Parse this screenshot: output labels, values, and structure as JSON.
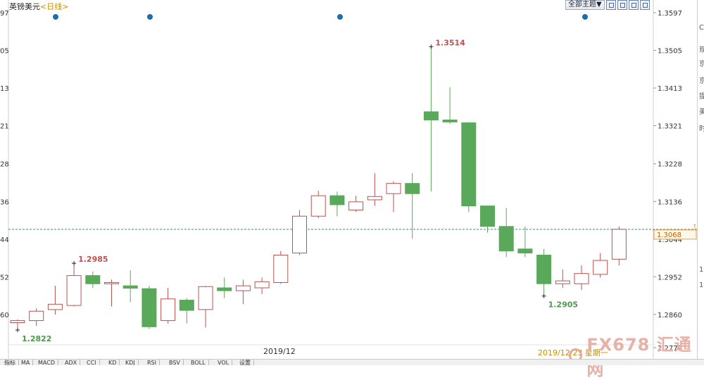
{
  "header": {
    "instrument": "英镑美元",
    "period": "<日线>",
    "toolbar_theme_label": "全部主题▼"
  },
  "left_axis_fragments": [
    "97",
    "05",
    "13",
    "21",
    "28",
    "36",
    "44",
    "52",
    "60"
  ],
  "right_strip_chars": [
    "C",
    "现",
    "京",
    "京",
    "提",
    "美",
    "时",
    "1",
    "1"
  ],
  "indicator_tabs": [
    "指标",
    "MA",
    "MACD",
    "ADX",
    "CCI",
    "KD",
    "KDJ",
    "RSI",
    "BSV",
    "BOLL",
    "VOL",
    "设置"
  ],
  "bottom_axis_label": "2019/12",
  "cursor_date_label": "2019/12/23 星期一",
  "watermark_text": "FX678 汇通网",
  "colors": {
    "up_outline": "#c0504d",
    "down_fill": "#5aa85a",
    "current_price_line": "#2a8fbf",
    "event_dot": "#1b6fa8",
    "axis_text": "#333333"
  },
  "chart_data": {
    "type": "candlestick",
    "ylim": [
      1.2779,
      1.3597
    ],
    "y_ticks": [
      1.3597,
      1.3505,
      1.3413,
      1.3321,
      1.3228,
      1.3136,
      1.3044,
      1.2952,
      1.286,
      1.2779
    ],
    "x_label": "2019/12",
    "current_price": 1.3068,
    "current_price_label": "1.3068",
    "event_marker_count": 4,
    "annotations": [
      {
        "text": "1.2822",
        "value": 1.2822,
        "kind": "low",
        "at_candle": 0
      },
      {
        "text": "1.2985",
        "value": 1.2985,
        "kind": "high",
        "at_candle": 3
      },
      {
        "text": "1.3514",
        "value": 1.3514,
        "kind": "high",
        "at_candle": 22
      },
      {
        "text": "1.2905",
        "value": 1.2905,
        "kind": "low",
        "at_candle": 28
      }
    ],
    "candles": [
      {
        "o": 1.284,
        "h": 1.2848,
        "l": 1.2822,
        "c": 1.2845
      },
      {
        "o": 1.2845,
        "h": 1.2875,
        "l": 1.2832,
        "c": 1.2868
      },
      {
        "o": 1.2872,
        "h": 1.293,
        "l": 1.286,
        "c": 1.2885
      },
      {
        "o": 1.2882,
        "h": 1.2985,
        "l": 1.288,
        "c": 1.2955
      },
      {
        "o": 1.2955,
        "h": 1.2965,
        "l": 1.2925,
        "c": 1.2935
      },
      {
        "o": 1.2935,
        "h": 1.2945,
        "l": 1.288,
        "c": 1.2938
      },
      {
        "o": 1.293,
        "h": 1.2968,
        "l": 1.289,
        "c": 1.2924
      },
      {
        "o": 1.2923,
        "h": 1.293,
        "l": 1.2824,
        "c": 1.283
      },
      {
        "o": 1.2845,
        "h": 1.2925,
        "l": 1.2838,
        "c": 1.2898
      },
      {
        "o": 1.2895,
        "h": 1.29,
        "l": 1.2838,
        "c": 1.287
      },
      {
        "o": 1.2872,
        "h": 1.293,
        "l": 1.2828,
        "c": 1.2928
      },
      {
        "o": 1.2925,
        "h": 1.295,
        "l": 1.29,
        "c": 1.2918
      },
      {
        "o": 1.2918,
        "h": 1.2945,
        "l": 1.2885,
        "c": 1.293
      },
      {
        "o": 1.2925,
        "h": 1.295,
        "l": 1.291,
        "c": 1.294
      },
      {
        "o": 1.2938,
        "h": 1.3015,
        "l": 1.2935,
        "c": 1.3005
      },
      {
        "o": 1.301,
        "h": 1.3115,
        "l": 1.3005,
        "c": 1.31
      },
      {
        "o": 1.31,
        "h": 1.3162,
        "l": 1.3095,
        "c": 1.315
      },
      {
        "o": 1.315,
        "h": 1.316,
        "l": 1.31,
        "c": 1.3128
      },
      {
        "o": 1.3115,
        "h": 1.315,
        "l": 1.311,
        "c": 1.3135
      },
      {
        "o": 1.314,
        "h": 1.3205,
        "l": 1.3125,
        "c": 1.3148
      },
      {
        "o": 1.3155,
        "h": 1.3185,
        "l": 1.311,
        "c": 1.318
      },
      {
        "o": 1.318,
        "h": 1.3205,
        "l": 1.3045,
        "c": 1.3155
      },
      {
        "o": 1.3355,
        "h": 1.3514,
        "l": 1.316,
        "c": 1.3335
      },
      {
        "o": 1.3335,
        "h": 1.3415,
        "l": 1.3325,
        "c": 1.333
      },
      {
        "o": 1.3328,
        "h": 1.333,
        "l": 1.311,
        "c": 1.3125
      },
      {
        "o": 1.3125,
        "h": 1.3125,
        "l": 1.306,
        "c": 1.3075
      },
      {
        "o": 1.3075,
        "h": 1.312,
        "l": 1.3,
        "c": 1.3015
      },
      {
        "o": 1.302,
        "h": 1.3075,
        "l": 1.3,
        "c": 1.301
      },
      {
        "o": 1.3005,
        "h": 1.302,
        "l": 1.2905,
        "c": 1.2935
      },
      {
        "o": 1.2935,
        "h": 1.297,
        "l": 1.2925,
        "c": 1.2942
      },
      {
        "o": 1.2935,
        "h": 1.298,
        "l": 1.292,
        "c": 1.296
      },
      {
        "o": 1.2958,
        "h": 1.301,
        "l": 1.295,
        "c": 1.2992
      },
      {
        "o": 1.2995,
        "h": 1.3075,
        "l": 1.298,
        "c": 1.3068
      }
    ]
  }
}
